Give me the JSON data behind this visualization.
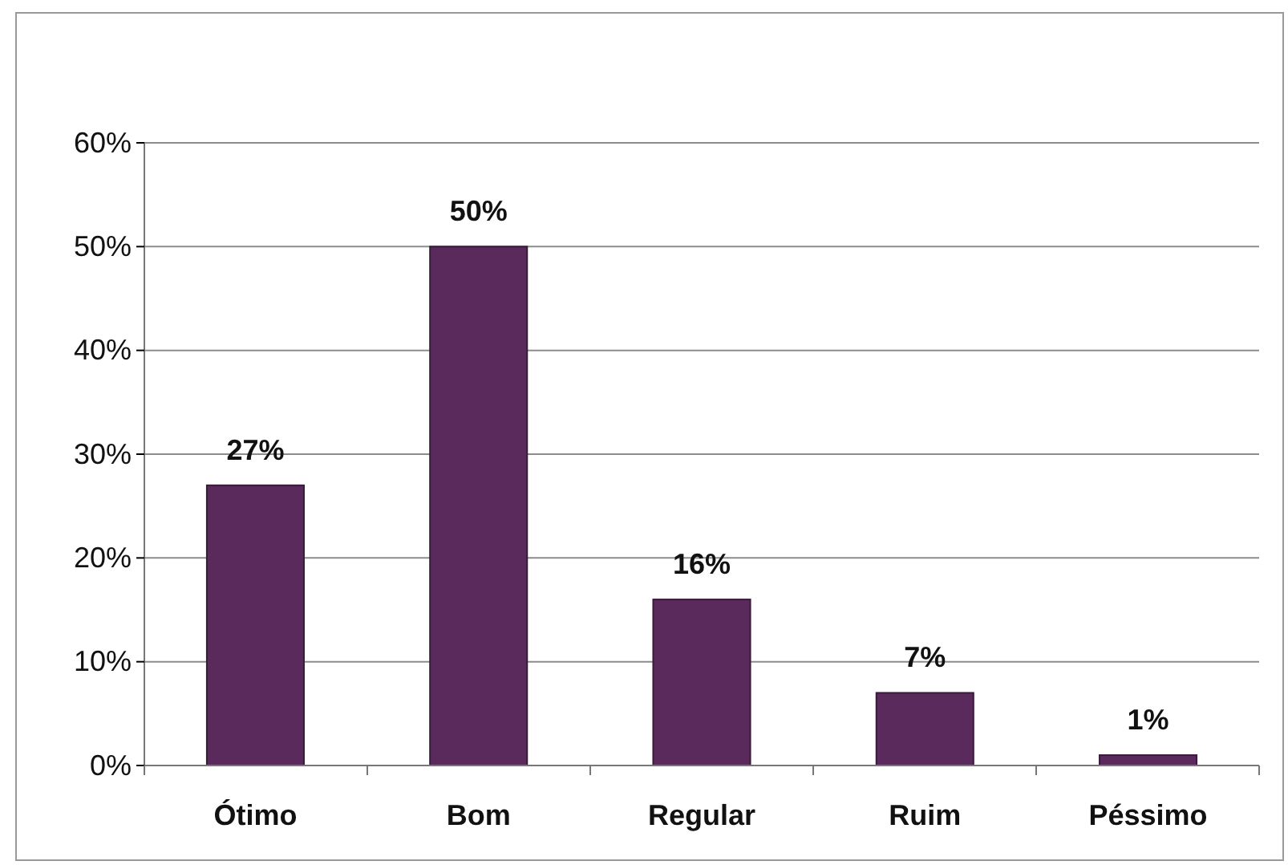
{
  "chart_data": {
    "type": "bar",
    "categories": [
      "Ótimo",
      "Bom",
      "Regular",
      "Ruim",
      "Péssimo"
    ],
    "values": [
      27,
      50,
      16,
      7,
      1
    ],
    "value_labels": [
      "27%",
      "50%",
      "16%",
      "7%",
      "1%"
    ],
    "color": "#5b2a5c",
    "ylim": [
      0,
      60
    ],
    "yticks": [
      {
        "value": 0,
        "label": "0%"
      },
      {
        "value": 10,
        "label": "10%"
      },
      {
        "value": 20,
        "label": "20%"
      },
      {
        "value": 30,
        "label": "30%"
      },
      {
        "value": 40,
        "label": "40%"
      },
      {
        "value": 50,
        "label": "50%"
      },
      {
        "value": 60,
        "label": "60%"
      }
    ],
    "grid": true
  }
}
